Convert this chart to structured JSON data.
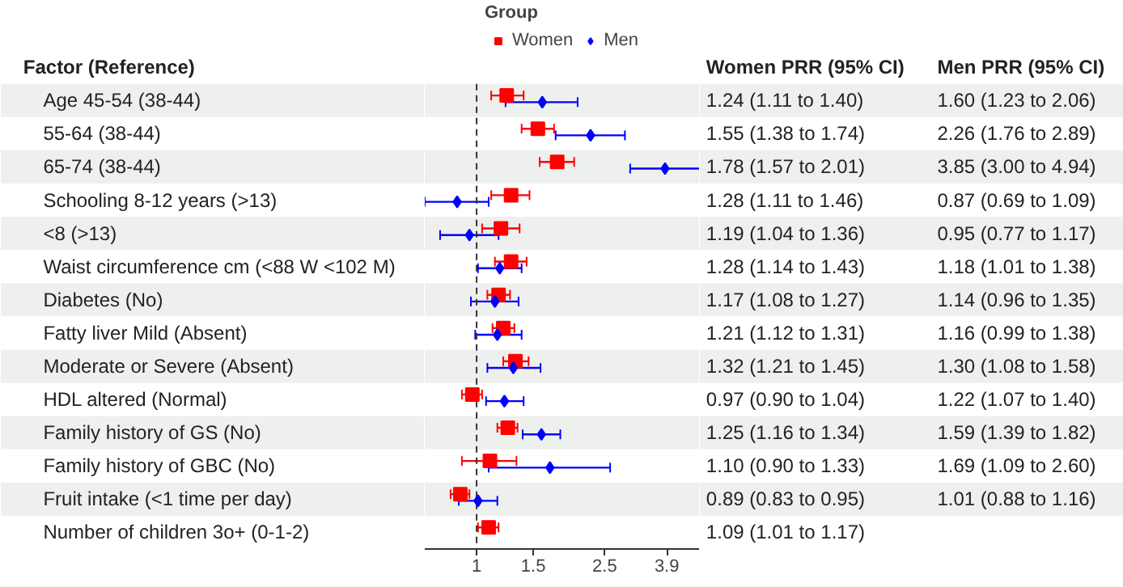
{
  "chart_data": {
    "type": "scatter",
    "orientation": "horizontal",
    "log": "x",
    "grid": false,
    "legend": "top",
    "legend_title": "Group",
    "ylabel": "Factor (Reference)",
    "annotations": [
      "Women PRR (95% CI)",
      "Men PRR (95% CI)"
    ],
    "categories": [
      "Age 45-54 (38-44)",
      "55-64 (38-44)",
      "65-74 (38-44)",
      "Schooling 8-12 years (>13)",
      "<8 (>13)",
      "Waist circumference cm (<88 W <102 M)",
      "Diabetes (No)",
      "Fatty liver Mild (Absent)",
      "Moderate or Severe (Absent)",
      "HDL altered (Normal)",
      "Family history of GS (No)",
      "Family history of GBC (No)",
      "Fruit intake (<1 time per day)",
      "Number of children 3o+ (0-1-2)"
    ],
    "xlim": [
      0.69,
      4.94
    ],
    "xticks": [
      1,
      1.5,
      2.5,
      3.9
    ],
    "ref_lines": [
      {
        "axis": "x",
        "value": 1,
        "line_style": "dashed",
        "color": "#333333"
      }
    ],
    "series": [
      {
        "name": "Women",
        "color": "#ff0000",
        "marker": "square",
        "values": [
          1.24,
          1.55,
          1.78,
          1.28,
          1.19,
          1.28,
          1.17,
          1.21,
          1.32,
          0.97,
          1.25,
          1.1,
          0.89,
          1.09
        ],
        "errors": [
          [
            1.11,
            1.4
          ],
          [
            1.38,
            1.74
          ],
          [
            1.57,
            2.01
          ],
          [
            1.11,
            1.46
          ],
          [
            1.04,
            1.36
          ],
          [
            1.14,
            1.43
          ],
          [
            1.08,
            1.27
          ],
          [
            1.12,
            1.31
          ],
          [
            1.21,
            1.45
          ],
          [
            0.9,
            1.04
          ],
          [
            1.16,
            1.34
          ],
          [
            0.9,
            1.33
          ],
          [
            0.83,
            0.95
          ],
          [
            1.01,
            1.17
          ]
        ],
        "value_labels": [
          "1.24 (1.11 to 1.40)",
          "1.55 (1.38 to 1.74)",
          "1.78 (1.57 to 2.01)",
          "1.28 (1.11 to 1.46)",
          "1.19 (1.04 to 1.36)",
          "1.28 (1.14 to 1.43)",
          "1.17 (1.08 to 1.27)",
          "1.21 (1.12 to 1.31)",
          "1.32 (1.21 to 1.45)",
          "0.97 (0.90 to 1.04)",
          "1.25 (1.16 to 1.34)",
          "1.10 (0.90 to 1.33)",
          "0.89 (0.83 to 0.95)",
          "1.09 (1.01 to 1.17)"
        ]
      },
      {
        "name": "Men",
        "color": "#0000ff",
        "marker": "diamond",
        "values": [
          1.6,
          2.26,
          3.85,
          0.87,
          0.95,
          1.18,
          1.14,
          1.16,
          1.3,
          1.22,
          1.59,
          1.69,
          1.01,
          null
        ],
        "errors": [
          [
            1.23,
            2.06
          ],
          [
            1.76,
            2.89
          ],
          [
            3.0,
            4.94
          ],
          [
            0.69,
            1.09
          ],
          [
            0.77,
            1.17
          ],
          [
            1.01,
            1.38
          ],
          [
            0.96,
            1.35
          ],
          [
            0.99,
            1.38
          ],
          [
            1.08,
            1.58
          ],
          [
            1.07,
            1.4
          ],
          [
            1.39,
            1.82
          ],
          [
            1.09,
            2.6
          ],
          [
            0.88,
            1.16
          ],
          null
        ],
        "value_labels": [
          "1.60 (1.23 to 2.06)",
          "2.26 (1.76 to 2.89)",
          "3.85 (3.00 to 4.94)",
          "0.87 (0.69 to 1.09)",
          "0.95 (0.77 to 1.17)",
          "1.18 (1.01 to 1.38)",
          "1.14 (0.96 to 1.35)",
          "1.16 (0.99 to 1.38)",
          "1.30 (1.08 to 1.58)",
          "1.22 (1.07 to 1.40)",
          "1.59 (1.39 to 1.82)",
          "1.69 (1.09 to 2.60)",
          "1.01 (0.88 to 1.16)",
          null
        ]
      }
    ]
  }
}
